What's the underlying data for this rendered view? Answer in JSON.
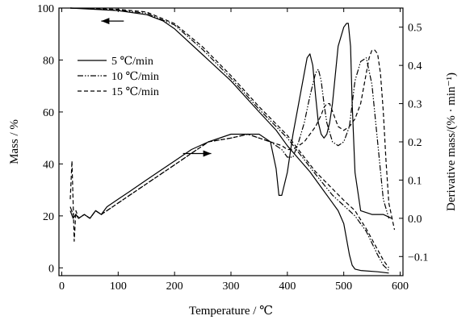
{
  "chart_data": {
    "type": "line",
    "xlabel": "Temperature / ℃",
    "ylabel_left": "Mass / %",
    "ylabel_right": "Derivative mass/(% · min⁻¹)",
    "xlim": [
      -5,
      605
    ],
    "ylim_left": [
      -3,
      100
    ],
    "ylim_right": [
      -0.15,
      0.55
    ],
    "x_ticks": [
      0,
      100,
      200,
      300,
      400,
      500,
      600
    ],
    "y_ticks_left": [
      0,
      20,
      40,
      60,
      80,
      100
    ],
    "y_ticks_right": [
      -0.1,
      0.0,
      0.1,
      0.2,
      0.3,
      0.4,
      0.5
    ],
    "x_tick_labels": [
      "0",
      "100",
      "200",
      "300",
      "400",
      "500",
      "600"
    ],
    "y_tick_labels_left": [
      "0",
      "20",
      "40",
      "60",
      "80",
      "100"
    ],
    "y_tick_labels_right": [
      "−0.1",
      "0.0",
      "0.1",
      "0.2",
      "0.3",
      "0.4",
      "0.5"
    ],
    "legend_placement": "upper-left",
    "grid": false,
    "series": [
      {
        "name": "5 ℃/min",
        "dash": "solid",
        "mass": {
          "x": [
            15,
            60,
            100,
            150,
            180,
            200,
            250,
            300,
            350,
            380,
            400,
            420,
            440,
            460,
            480,
            490,
            500,
            505,
            510,
            515,
            520,
            530,
            560,
            580
          ],
          "y": [
            100,
            99.5,
            99,
            97.5,
            95,
            92,
            82,
            72,
            60,
            53,
            47,
            42,
            37,
            31,
            25,
            22,
            17,
            11,
            5,
            1,
            -0.5,
            -1,
            -1.5,
            -2
          ]
        },
        "dtg": {
          "x": [
            15,
            20,
            25,
            30,
            40,
            50,
            60,
            70,
            80,
            100,
            120,
            150,
            170,
            200,
            230,
            260,
            300,
            330,
            350,
            370,
            380,
            385,
            390,
            400,
            410,
            420,
            430,
            435,
            440,
            445,
            450,
            455,
            460,
            465,
            470,
            475,
            480,
            490,
            500,
            505,
            508,
            512,
            515,
            520,
            530,
            550,
            570,
            585
          ],
          "y": [
            0.02,
            0.0,
            0.01,
            0.0,
            0.01,
            0.0,
            0.02,
            0.01,
            0.03,
            0.05,
            0.07,
            0.1,
            0.12,
            0.15,
            0.18,
            0.2,
            0.22,
            0.22,
            0.22,
            0.2,
            0.13,
            0.06,
            0.06,
            0.12,
            0.22,
            0.3,
            0.38,
            0.42,
            0.43,
            0.4,
            0.32,
            0.25,
            0.22,
            0.21,
            0.22,
            0.25,
            0.3,
            0.45,
            0.5,
            0.51,
            0.51,
            0.45,
            0.3,
            0.12,
            0.02,
            0.01,
            0.01,
            0.0
          ]
        }
      },
      {
        "name": "10 ℃/min",
        "dash": "dashdotdot",
        "mass": {
          "x": [
            15,
            60,
            100,
            150,
            200,
            250,
            300,
            350,
            400,
            450,
            480,
            500,
            520,
            540,
            560,
            570,
            580
          ],
          "y": [
            100,
            99.7,
            99.2,
            98,
            93.5,
            84,
            73,
            61,
            50,
            36,
            28,
            24,
            20,
            14,
            5,
            1,
            -1
          ]
        },
        "dtg": {
          "x": [
            15,
            20,
            25,
            30,
            40,
            50,
            60,
            70,
            80,
            100,
            120,
            150,
            170,
            200,
            230,
            260,
            300,
            330,
            350,
            370,
            390,
            400,
            410,
            420,
            430,
            440,
            450,
            455,
            460,
            465,
            470,
            480,
            490,
            500,
            510,
            515,
            520,
            530,
            540,
            550,
            560,
            570,
            580
          ],
          "y": [
            0.03,
            0.01,
            0.01,
            0.0,
            0.01,
            0.0,
            0.02,
            0.01,
            0.02,
            0.04,
            0.06,
            0.09,
            0.11,
            0.14,
            0.17,
            0.2,
            0.21,
            0.22,
            0.21,
            0.2,
            0.18,
            0.16,
            0.16,
            0.2,
            0.25,
            0.32,
            0.38,
            0.39,
            0.36,
            0.3,
            0.25,
            0.2,
            0.19,
            0.2,
            0.24,
            0.3,
            0.36,
            0.41,
            0.42,
            0.35,
            0.2,
            0.05,
            0.0
          ]
        }
      },
      {
        "name": "15 ℃/min",
        "dash": "dashed",
        "mass": {
          "x": [
            15,
            60,
            100,
            150,
            200,
            250,
            300,
            350,
            400,
            450,
            500,
            520,
            540,
            560,
            570,
            580
          ],
          "y": [
            100,
            99.8,
            99.5,
            98.5,
            94,
            85,
            74,
            62,
            51,
            37,
            26,
            22,
            15,
            7,
            3,
            0
          ]
        },
        "dtg": {
          "x": [
            15,
            18,
            22,
            25,
            30,
            40,
            50,
            60,
            70,
            80,
            100,
            120,
            150,
            170,
            200,
            230,
            260,
            300,
            330,
            350,
            370,
            390,
            400,
            410,
            420,
            430,
            440,
            450,
            460,
            465,
            470,
            475,
            480,
            490,
            500,
            510,
            520,
            530,
            540,
            545,
            550,
            555,
            560,
            565,
            570,
            575,
            580,
            590
          ],
          "y": [
            0.05,
            0.15,
            -0.06,
            0.02,
            0.0,
            0.01,
            0.0,
            0.02,
            0.01,
            0.02,
            0.04,
            0.06,
            0.09,
            0.11,
            0.14,
            0.17,
            0.2,
            0.21,
            0.22,
            0.21,
            0.2,
            0.19,
            0.18,
            0.18,
            0.19,
            0.2,
            0.22,
            0.24,
            0.27,
            0.29,
            0.3,
            0.3,
            0.28,
            0.24,
            0.23,
            0.24,
            0.26,
            0.3,
            0.38,
            0.42,
            0.44,
            0.44,
            0.43,
            0.38,
            0.28,
            0.15,
            0.04,
            -0.03
          ]
        }
      }
    ],
    "annotations": [
      {
        "type": "arrow",
        "direction": "left",
        "target_axis": "left",
        "from": [
          110,
          95
        ],
        "to": [
          70,
          95
        ]
      },
      {
        "type": "arrow",
        "direction": "right",
        "target_axis": "left",
        "from": [
          215,
          44
        ],
        "to": [
          265,
          44
        ]
      }
    ]
  }
}
